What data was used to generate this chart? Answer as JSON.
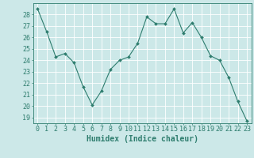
{
  "x": [
    0,
    1,
    2,
    3,
    4,
    5,
    6,
    7,
    8,
    9,
    10,
    11,
    12,
    13,
    14,
    15,
    16,
    17,
    18,
    19,
    20,
    21,
    22,
    23
  ],
  "y": [
    28.5,
    26.5,
    24.3,
    24.6,
    23.8,
    21.7,
    20.1,
    21.3,
    23.2,
    24.0,
    24.3,
    25.5,
    27.8,
    27.2,
    27.2,
    28.5,
    26.4,
    27.3,
    26.0,
    24.4,
    24.0,
    22.5,
    20.4,
    18.7
  ],
  "line_color": "#2e7d6e",
  "marker": "D",
  "marker_size": 2.0,
  "bg_color": "#cce8e8",
  "grid_color": "#ffffff",
  "xlabel": "Humidex (Indice chaleur)",
  "ylabel_ticks": [
    19,
    20,
    21,
    22,
    23,
    24,
    25,
    26,
    27,
    28
  ],
  "ylim": [
    18.5,
    29.0
  ],
  "xlim": [
    -0.5,
    23.5
  ],
  "tick_color": "#2e7d6e",
  "xlabel_fontsize": 7,
  "tick_fontsize": 6,
  "linewidth": 0.8
}
